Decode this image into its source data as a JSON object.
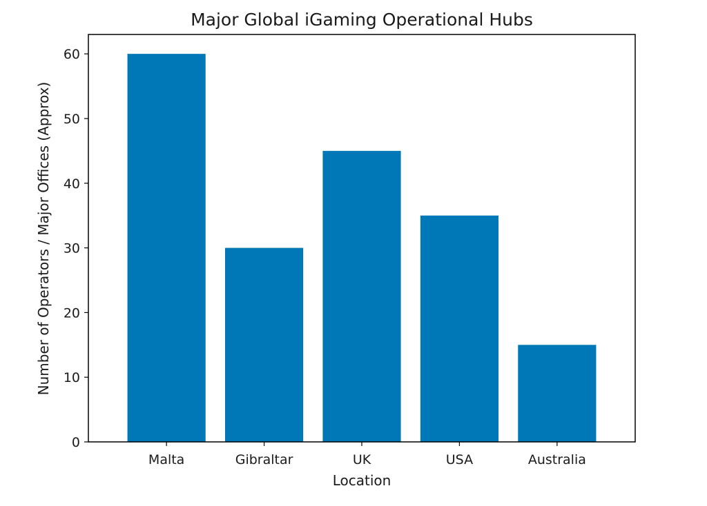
{
  "chart_data": {
    "type": "bar",
    "title": "Major Global iGaming Operational Hubs",
    "xlabel": "Location",
    "ylabel": "Number of Operators / Major Offices (Approx)",
    "categories": [
      "Malta",
      "Gibraltar",
      "UK",
      "USA",
      "Australia"
    ],
    "values": [
      60,
      30,
      45,
      35,
      15
    ],
    "ylim": [
      0,
      63
    ],
    "yticks": [
      0,
      10,
      20,
      30,
      40,
      50,
      60
    ],
    "grid": false,
    "legend": "none",
    "bar_color": "#0077b6"
  }
}
